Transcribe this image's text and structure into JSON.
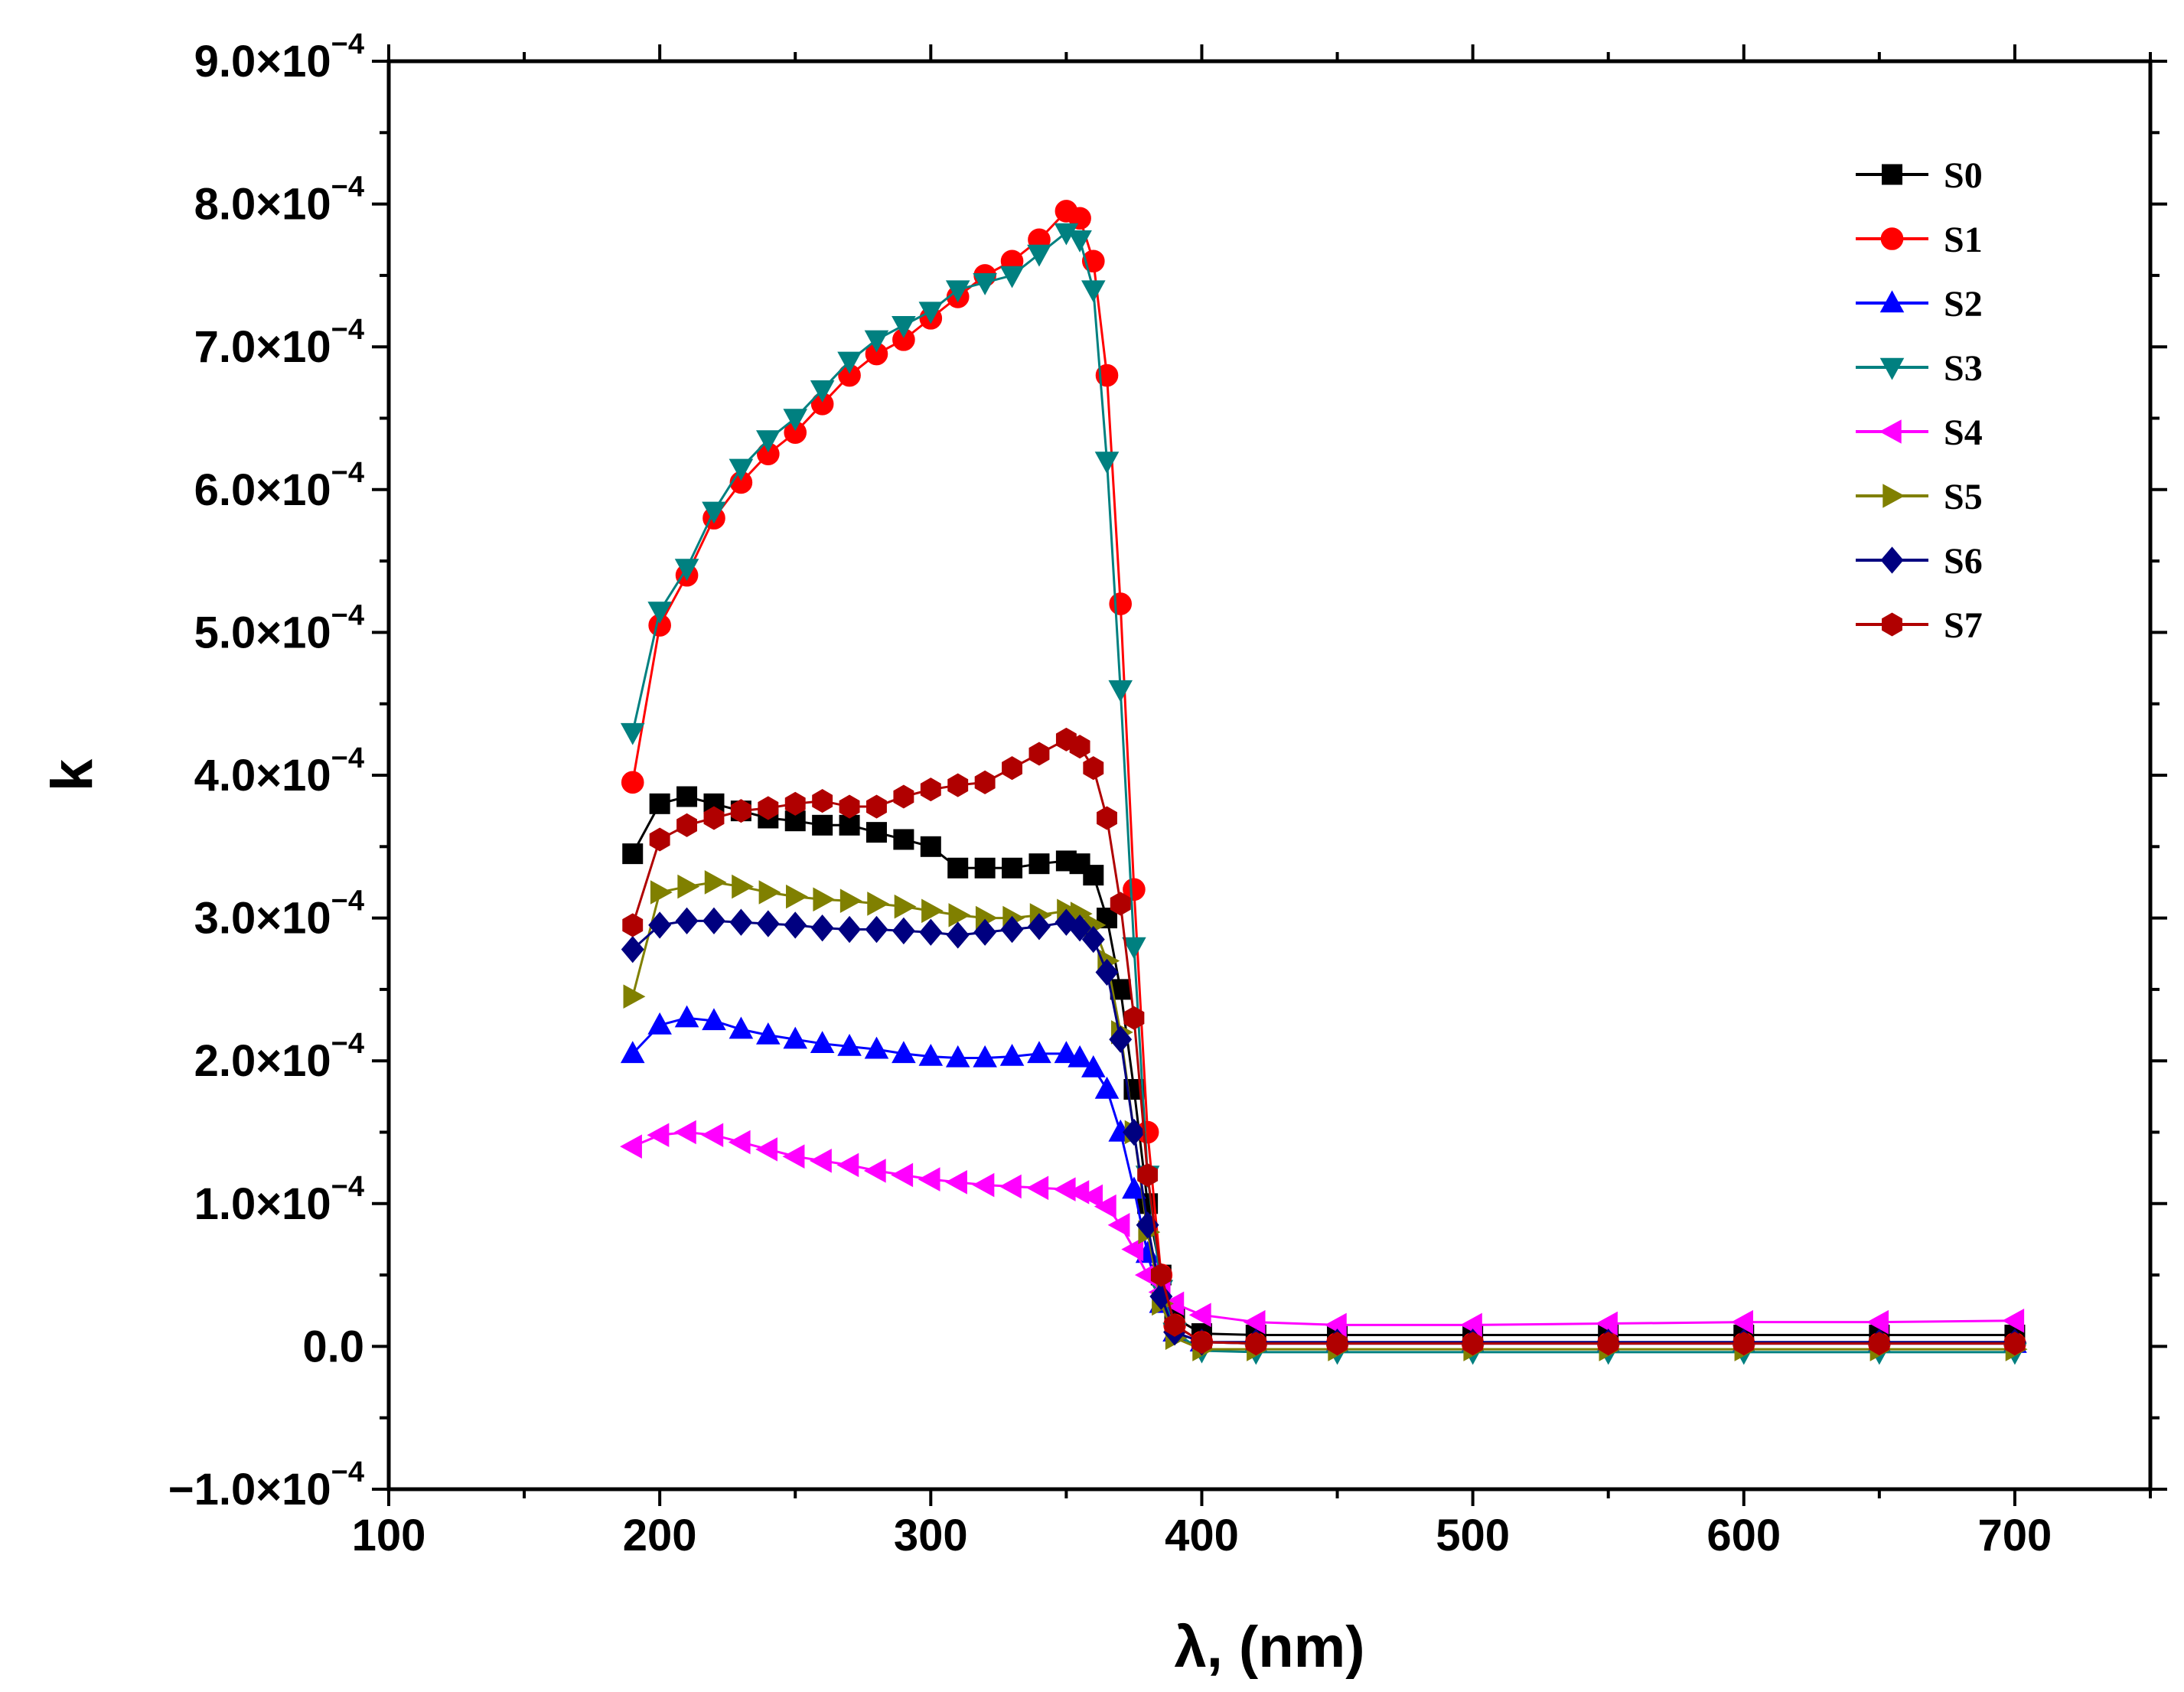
{
  "chart_data": {
    "type": "line",
    "title": "",
    "xlabel": "λ, (nm)",
    "ylabel": "k",
    "xlim": [
      100,
      750
    ],
    "ylim": [
      -0.0001,
      0.0009
    ],
    "x_ticks": [
      100,
      200,
      300,
      400,
      500,
      600,
      700
    ],
    "x_tick_labels": [
      "100",
      "200",
      "300",
      "400",
      "500",
      "600",
      "700"
    ],
    "y_ticks": [
      -0.0001,
      0,
      0.0001,
      0.0002,
      0.0003,
      0.0004,
      0.0005,
      0.0006,
      0.0007,
      0.0008,
      0.0009
    ],
    "y_tick_labels": [
      {
        "mantissa": "−1.0×10",
        "exp": "−4"
      },
      {
        "mantissa": "0.0",
        "exp": ""
      },
      {
        "mantissa": "1.0×10",
        "exp": "−4"
      },
      {
        "mantissa": "2.0×10",
        "exp": "−4"
      },
      {
        "mantissa": "3.0×10",
        "exp": "−4"
      },
      {
        "mantissa": "4.0×10",
        "exp": "−4"
      },
      {
        "mantissa": "5.0×10",
        "exp": "−4"
      },
      {
        "mantissa": "6.0×10",
        "exp": "−4"
      },
      {
        "mantissa": "7.0×10",
        "exp": "−4"
      },
      {
        "mantissa": "8.0×10",
        "exp": "−4"
      },
      {
        "mantissa": "9.0×10",
        "exp": "−4"
      }
    ],
    "legend_position": "top-right",
    "grid": false,
    "x": [
      190,
      200,
      210,
      220,
      230,
      240,
      250,
      260,
      270,
      280,
      290,
      300,
      310,
      320,
      330,
      340,
      350,
      355,
      360,
      365,
      370,
      375,
      380,
      385,
      390,
      400,
      420,
      450,
      500,
      550,
      600,
      650,
      700
    ],
    "series": [
      {
        "name": "S0",
        "color": "#000000",
        "marker": "square",
        "values": [
          0.000345,
          0.00038,
          0.000385,
          0.00038,
          0.000375,
          0.00037,
          0.000368,
          0.000365,
          0.000365,
          0.00036,
          0.000355,
          0.00035,
          0.000335,
          0.000335,
          0.000335,
          0.000338,
          0.00034,
          0.000338,
          0.00033,
          0.0003,
          0.00025,
          0.00018,
          0.0001,
          5e-05,
          2e-05,
          9e-06,
          8e-06,
          8e-06,
          8e-06,
          8e-06,
          8e-06,
          8e-06,
          8e-06
        ]
      },
      {
        "name": "S1",
        "color": "#ff0000",
        "marker": "circle",
        "values": [
          0.000395,
          0.000505,
          0.00054,
          0.00058,
          0.000605,
          0.000625,
          0.00064,
          0.00066,
          0.00068,
          0.000695,
          0.000705,
          0.00072,
          0.000735,
          0.00075,
          0.00076,
          0.000775,
          0.000795,
          0.00079,
          0.00076,
          0.00068,
          0.00052,
          0.00032,
          0.00015,
          5e-05,
          1.5e-05,
          3e-06,
          2e-06,
          2e-06,
          2e-06,
          2e-06,
          2e-06,
          2e-06,
          2e-06
        ]
      },
      {
        "name": "S2",
        "color": "#0000ff",
        "marker": "triangle-up",
        "values": [
          0.000205,
          0.000225,
          0.00023,
          0.000228,
          0.000222,
          0.000218,
          0.000215,
          0.000212,
          0.00021,
          0.000208,
          0.000205,
          0.000203,
          0.000202,
          0.000202,
          0.000203,
          0.000205,
          0.000205,
          0.000202,
          0.000195,
          0.00018,
          0.00015,
          0.00011,
          6.5e-05,
          3e-05,
          1e-05,
          3e-06,
          2e-06,
          2e-06,
          2e-06,
          2e-06,
          2e-06,
          2e-06,
          2e-06
        ]
      },
      {
        "name": "S3",
        "color": "#008080",
        "marker": "triangle-down",
        "values": [
          0.00043,
          0.000515,
          0.000545,
          0.000585,
          0.000615,
          0.000635,
          0.00065,
          0.00067,
          0.00069,
          0.000705,
          0.000715,
          0.000725,
          0.00074,
          0.000745,
          0.00075,
          0.000765,
          0.00078,
          0.000775,
          0.00074,
          0.00062,
          0.00046,
          0.00028,
          0.00012,
          4e-05,
          1e-05,
          -3e-06,
          -4e-06,
          -4e-06,
          -4e-06,
          -4e-06,
          -4e-06,
          -4e-06,
          -4e-06
        ]
      },
      {
        "name": "S4",
        "color": "#ff00ff",
        "marker": "triangle-left",
        "values": [
          0.00014,
          0.000148,
          0.00015,
          0.000148,
          0.000143,
          0.000138,
          0.000133,
          0.00013,
          0.000127,
          0.000123,
          0.00012,
          0.000117,
          0.000115,
          0.000113,
          0.000112,
          0.000111,
          0.00011,
          0.000108,
          0.000105,
          9.8e-05,
          8.5e-05,
          6.8e-05,
          5e-05,
          3.8e-05,
          3e-05,
          2.2e-05,
          1.7e-05,
          1.5e-05,
          1.5e-05,
          1.6e-05,
          1.7e-05,
          1.7e-05,
          1.8e-05
        ]
      },
      {
        "name": "S5",
        "color": "#808000",
        "marker": "triangle-right",
        "values": [
          0.000245,
          0.000318,
          0.000322,
          0.000325,
          0.000322,
          0.000318,
          0.000315,
          0.000313,
          0.000312,
          0.00031,
          0.000308,
          0.000305,
          0.000302,
          0.0003,
          0.0003,
          0.000302,
          0.000305,
          0.000303,
          0.000295,
          0.00027,
          0.00022,
          0.00015,
          8e-05,
          3e-05,
          6e-06,
          -2e-06,
          -2e-06,
          -2e-06,
          -2e-06,
          -2e-06,
          -2e-06,
          -2e-06,
          -2e-06
        ]
      },
      {
        "name": "S6",
        "color": "#000080",
        "marker": "diamond",
        "values": [
          0.000278,
          0.000295,
          0.000298,
          0.000298,
          0.000297,
          0.000296,
          0.000295,
          0.000293,
          0.000292,
          0.000292,
          0.000291,
          0.00029,
          0.000288,
          0.00029,
          0.000292,
          0.000294,
          0.000297,
          0.000293,
          0.000285,
          0.000262,
          0.000215,
          0.00015,
          8.5e-05,
          3.5e-05,
          1e-05,
          3e-06,
          3e-06,
          3e-06,
          3e-06,
          3e-06,
          3e-06,
          3e-06,
          3e-06
        ]
      },
      {
        "name": "S7",
        "color": "#b00000",
        "marker": "hexagon",
        "values": [
          0.000295,
          0.000355,
          0.000365,
          0.00037,
          0.000375,
          0.000377,
          0.00038,
          0.000382,
          0.000378,
          0.000378,
          0.000385,
          0.00039,
          0.000393,
          0.000395,
          0.000405,
          0.000415,
          0.000425,
          0.00042,
          0.000405,
          0.00037,
          0.00031,
          0.00023,
          0.00012,
          5e-05,
          1.5e-05,
          3e-06,
          2e-06,
          2e-06,
          2e-06,
          2e-06,
          2e-06,
          2e-06,
          2e-06
        ]
      }
    ]
  }
}
